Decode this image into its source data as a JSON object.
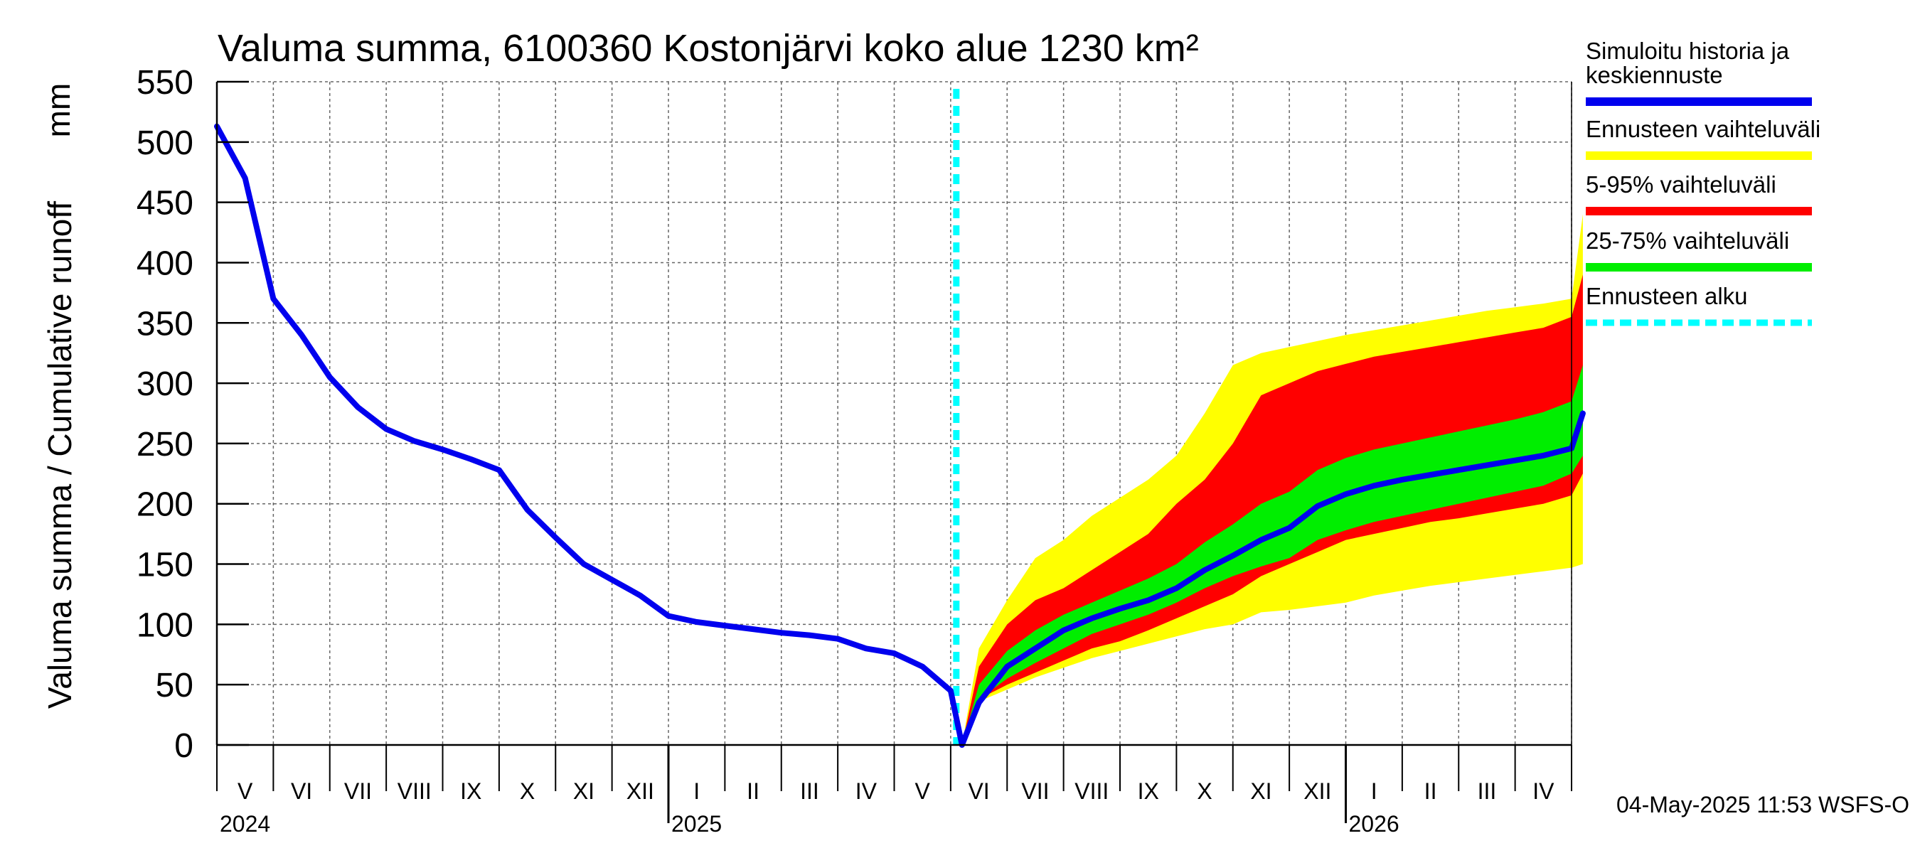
{
  "chart_data": {
    "type": "area",
    "title": "Valuma summa, 6100360 Kostonjärvi koko alue 1230 km²",
    "ylabel_left": "Valuma summa / Cumulative runoff",
    "ylabel_unit": "mm",
    "ylim": [
      0,
      550
    ],
    "yticks": [
      0,
      50,
      100,
      150,
      200,
      250,
      300,
      350,
      400,
      450,
      500,
      550
    ],
    "x_axis": {
      "start": "2024-04-01",
      "end": "2026-05-01",
      "month_labels": [
        "V",
        "VI",
        "VII",
        "VIII",
        "IX",
        "X",
        "XI",
        "XII",
        "I",
        "II",
        "III",
        "IV",
        "V",
        "VI",
        "VII",
        "VIII",
        "IX",
        "X",
        "XI",
        "XII",
        "I",
        "II",
        "III",
        "IV"
      ],
      "year_labels": [
        "2024",
        "2025",
        "2026"
      ]
    },
    "forecast_start": "2025-05-04",
    "x": [
      0,
      0.5,
      1,
      1.5,
      2,
      2.5,
      3,
      3.5,
      4,
      4.5,
      5,
      5.5,
      6,
      6.5,
      7,
      7.5,
      8,
      8.5,
      9,
      9.5,
      10,
      10.5,
      11,
      11.5,
      12,
      12.5,
      13,
      13.2,
      13.5,
      14,
      14.5,
      15,
      15.5,
      16,
      16.5,
      17,
      17.5,
      18,
      18.5,
      19,
      19.5,
      20,
      20.5,
      21,
      21.5,
      22,
      22.5,
      23,
      23.5,
      24,
      24.2
    ],
    "series": [
      {
        "name": "Simuloitu historia ja keskiennuste",
        "color": "#0000ee",
        "values": [
          513,
          470,
          370,
          340,
          305,
          280,
          262,
          252,
          245,
          237,
          228,
          195,
          172,
          150,
          137,
          124,
          107,
          102,
          99,
          96,
          93,
          91,
          88,
          80,
          76,
          65,
          45,
          0,
          35,
          65,
          80,
          95,
          105,
          113,
          120,
          130,
          145,
          157,
          170,
          180,
          198,
          208,
          215,
          220,
          224,
          228,
          232,
          236,
          240,
          246,
          275
        ]
      },
      {
        "name": "Ennusteen vaihteluväli",
        "color": "#ffff00",
        "lower": [
          null,
          null,
          null,
          null,
          null,
          null,
          null,
          null,
          null,
          null,
          null,
          null,
          null,
          null,
          null,
          null,
          null,
          null,
          null,
          null,
          null,
          null,
          null,
          null,
          null,
          null,
          null,
          0,
          36,
          46,
          56,
          64,
          72,
          78,
          84,
          90,
          96,
          100,
          110,
          112,
          115,
          118,
          124,
          128,
          132,
          135,
          138,
          141,
          144,
          147,
          150
        ],
        "upper": [
          null,
          null,
          null,
          null,
          null,
          null,
          null,
          null,
          null,
          null,
          null,
          null,
          null,
          null,
          null,
          null,
          null,
          null,
          null,
          null,
          null,
          null,
          null,
          null,
          null,
          null,
          null,
          0,
          80,
          120,
          155,
          170,
          190,
          205,
          220,
          240,
          275,
          315,
          325,
          330,
          335,
          340,
          344,
          348,
          352,
          356,
          360,
          363,
          366,
          370,
          440
        ]
      },
      {
        "name": "5-95% vaihteluväli",
        "color": "#ff0000",
        "lower": [
          null,
          null,
          null,
          null,
          null,
          null,
          null,
          null,
          null,
          null,
          null,
          null,
          null,
          null,
          null,
          null,
          null,
          null,
          null,
          null,
          null,
          null,
          null,
          null,
          null,
          null,
          null,
          0,
          38,
          50,
          60,
          70,
          80,
          86,
          95,
          105,
          115,
          125,
          140,
          150,
          160,
          170,
          175,
          180,
          185,
          188,
          192,
          196,
          200,
          207,
          225
        ]
      },
      {
        "name": "25-75% vaihteluväli",
        "color": "#00ee00",
        "lower": [
          null,
          null,
          null,
          null,
          null,
          null,
          null,
          null,
          null,
          null,
          null,
          null,
          null,
          null,
          null,
          null,
          null,
          null,
          null,
          null,
          null,
          null,
          null,
          null,
          null,
          null,
          null,
          0,
          38,
          55,
          68,
          80,
          92,
          100,
          108,
          118,
          130,
          140,
          148,
          155,
          170,
          178,
          185,
          190,
          195,
          200,
          205,
          210,
          215,
          225,
          240
        ],
        "upper": [
          null,
          null,
          null,
          null,
          null,
          null,
          null,
          null,
          null,
          null,
          null,
          null,
          null,
          null,
          null,
          null,
          null,
          null,
          null,
          null,
          null,
          null,
          null,
          null,
          null,
          null,
          null,
          0,
          50,
          78,
          95,
          108,
          118,
          128,
          138,
          150,
          168,
          183,
          200,
          210,
          228,
          238,
          245,
          250,
          255,
          260,
          265,
          270,
          276,
          285,
          315
        ]
      },
      {
        "name": "Ennusteen alku",
        "color": "#00ffff",
        "style": "dashed"
      }
    ],
    "series_red_upper": [
      null,
      null,
      null,
      null,
      null,
      null,
      null,
      null,
      null,
      null,
      null,
      null,
      null,
      null,
      null,
      null,
      null,
      null,
      null,
      null,
      null,
      null,
      null,
      null,
      null,
      null,
      null,
      0,
      65,
      100,
      120,
      130,
      145,
      160,
      175,
      200,
      220,
      250,
      290,
      300,
      310,
      316,
      322,
      326,
      330,
      334,
      338,
      342,
      346,
      355,
      390
    ]
  },
  "legend": [
    {
      "label_lines": [
        "Simuloitu historia ja",
        "keskiennuste"
      ],
      "color": "#0000ee",
      "style": "solid"
    },
    {
      "label_lines": [
        "Ennusteen vaihteluväli"
      ],
      "color": "#ffff00",
      "style": "solid"
    },
    {
      "label_lines": [
        "5-95% vaihteluväli"
      ],
      "color": "#ff0000",
      "style": "solid"
    },
    {
      "label_lines": [
        "25-75% vaihteluväli"
      ],
      "color": "#00ee00",
      "style": "solid"
    },
    {
      "label_lines": [
        "Ennusteen alku"
      ],
      "color": "#00ffff",
      "style": "dashed"
    }
  ],
  "footer": "04-May-2025 11:53 WSFS-O"
}
